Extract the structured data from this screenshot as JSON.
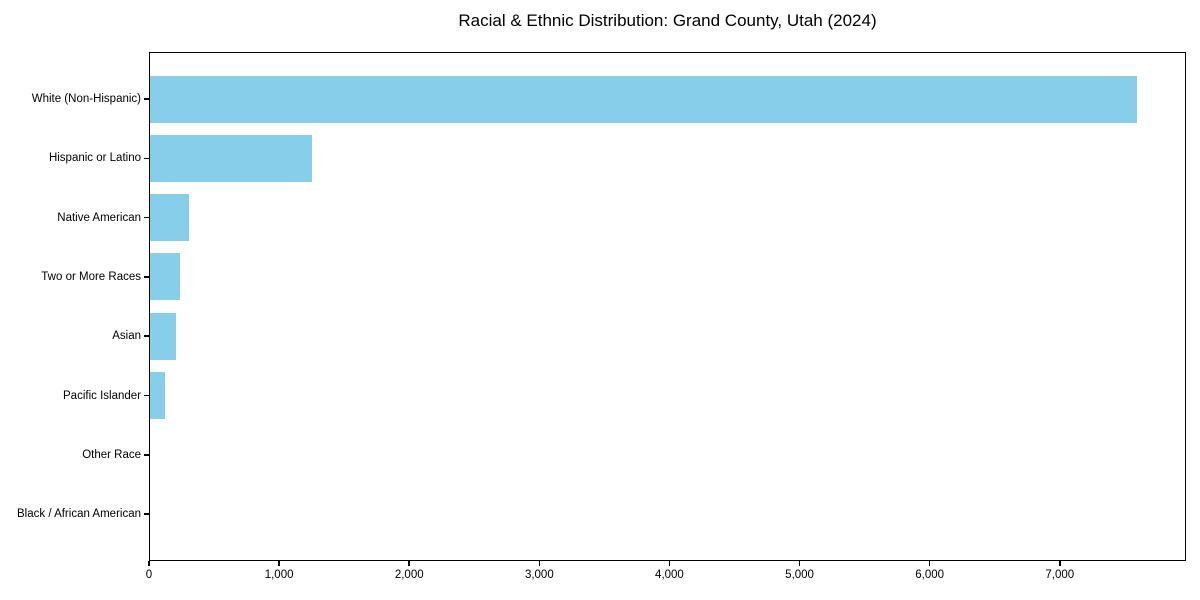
{
  "figure": {
    "background": "#ffffff"
  },
  "chart_data": {
    "type": "bar",
    "orientation": "horizontal",
    "title": "Racial & Ethnic Distribution: Grand County, Utah (2024)",
    "categories": [
      "White (Non-Hispanic)",
      "Hispanic or Latino",
      "Native American",
      "Two or More Races",
      "Asian",
      "Pacific Islander",
      "Other Race",
      "Black / African American"
    ],
    "values": [
      7590,
      1255,
      305,
      240,
      210,
      125,
      10,
      5
    ],
    "xlabel": "",
    "ylabel": "",
    "xlim": [
      0,
      7970
    ],
    "x_ticks": [
      0,
      1000,
      2000,
      3000,
      4000,
      5000,
      6000,
      7000
    ],
    "x_tick_labels": [
      "0",
      "1,000",
      "2,000",
      "3,000",
      "4,000",
      "5,000",
      "6,000",
      "7,000"
    ],
    "grid": false,
    "legend": null,
    "bar_color": "#87CEEB",
    "axis_color": "#000000",
    "text_color": "#000000"
  }
}
